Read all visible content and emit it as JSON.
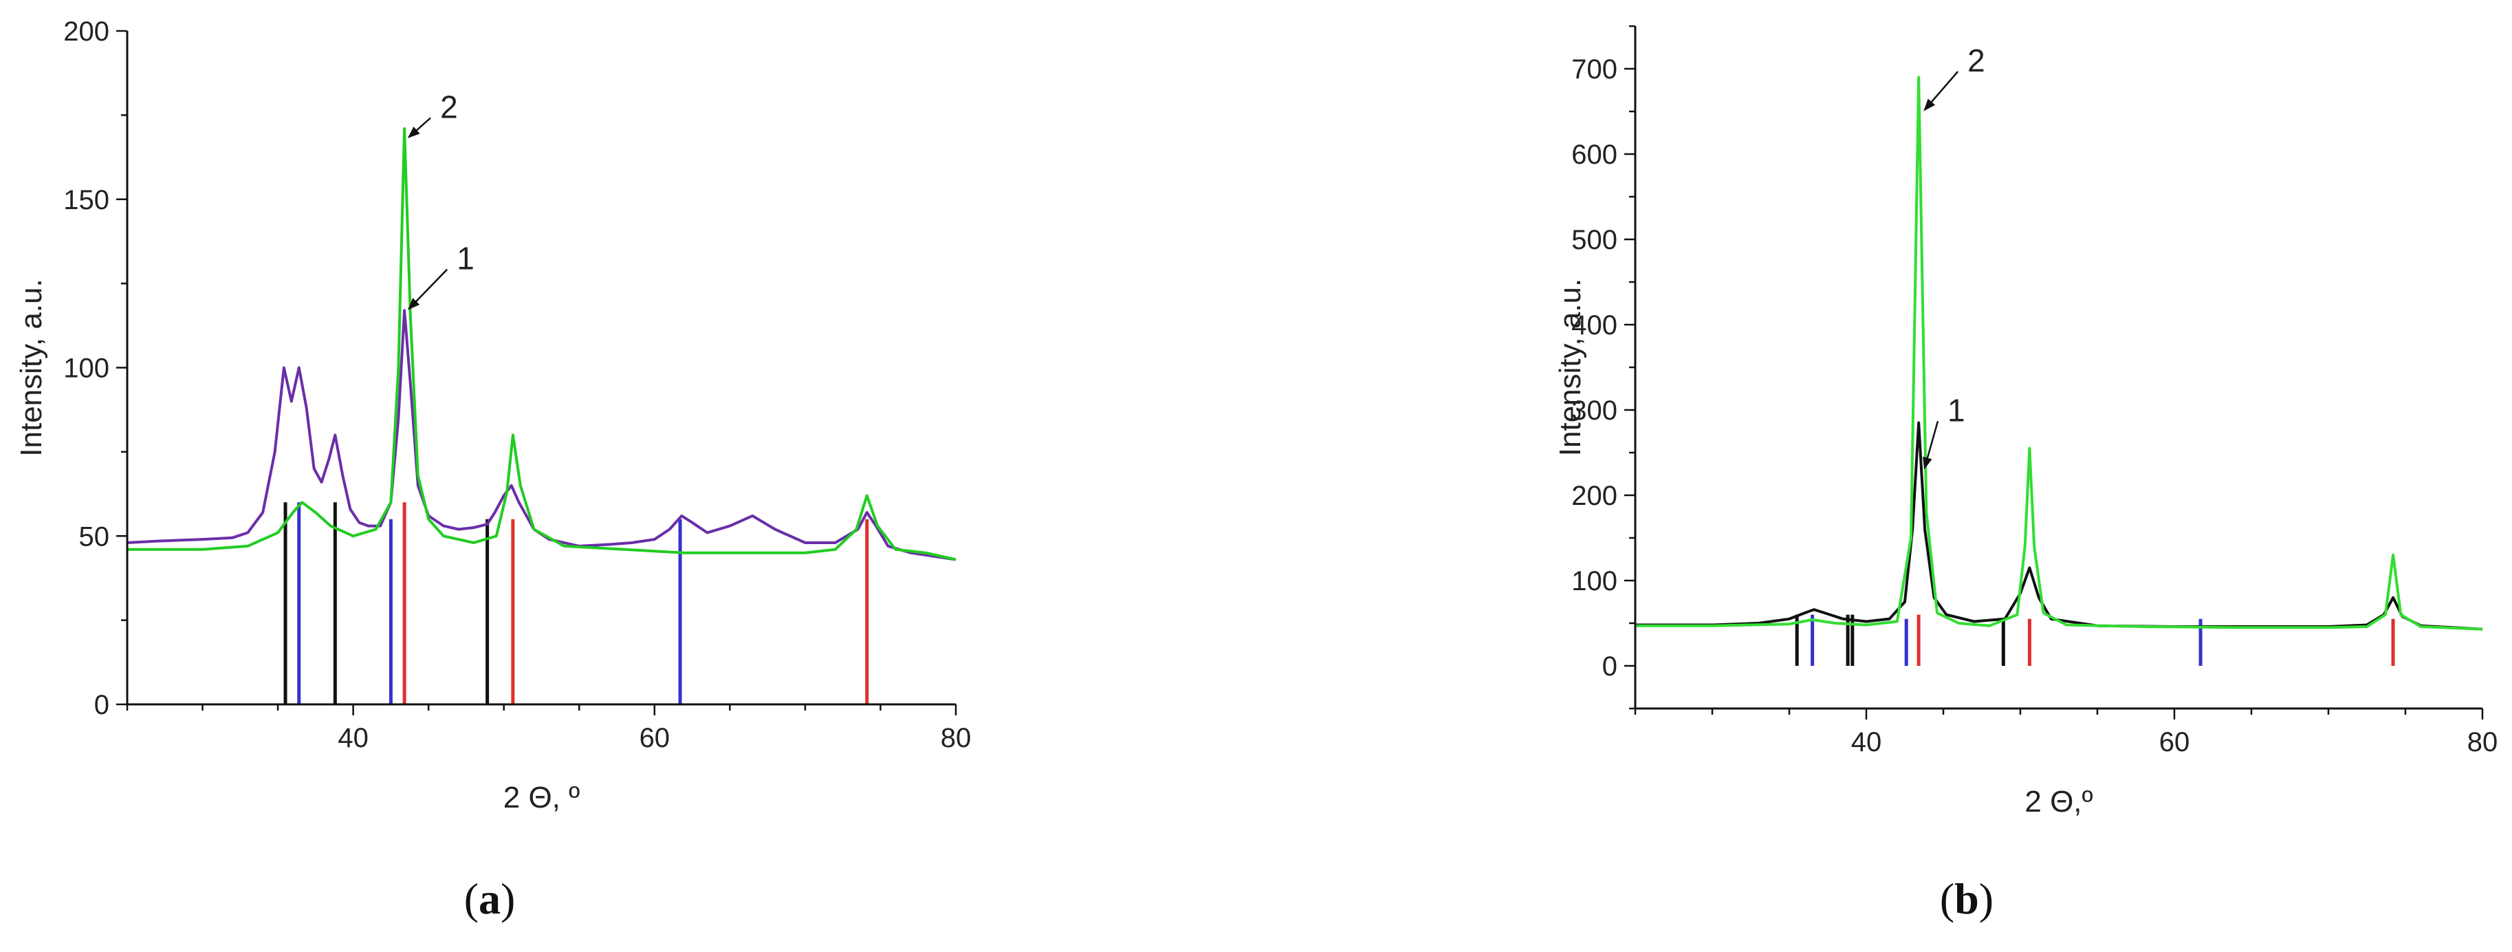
{
  "chart_data": [
    {
      "panel": "a",
      "caption": {
        "open": "(",
        "letter": "a",
        "close": ")"
      },
      "type": "line",
      "xlabel": "2 Θ, º",
      "ylabel": "Intensity, a.u.",
      "xlim": [
        25,
        80
      ],
      "ylim": [
        0,
        200
      ],
      "xticks": [
        40,
        60,
        80
      ],
      "yticks": [
        0,
        50,
        100,
        150,
        200
      ],
      "grid": false,
      "series": [
        {
          "label": "1",
          "color": "#6a2fa8",
          "x": [
            25,
            27,
            30,
            32,
            33,
            34,
            34.8,
            35.4,
            35.9,
            36.4,
            36.9,
            37.4,
            37.9,
            38.4,
            38.8,
            39.3,
            39.8,
            40.4,
            41,
            41.8,
            42.5,
            43.0,
            43.4,
            43.8,
            44.3,
            45,
            46,
            47,
            48,
            48.9,
            49.4,
            50,
            50.5,
            51,
            52,
            53,
            55,
            57,
            58.5,
            60,
            61,
            61.8,
            62.5,
            63.5,
            65,
            66.5,
            68,
            70,
            72,
            73.5,
            74.1,
            74.7,
            75.5,
            77,
            80
          ],
          "y": [
            48,
            48.5,
            49,
            49.5,
            51,
            57,
            75,
            100,
            90,
            100,
            88,
            70,
            66,
            73,
            80,
            68,
            58,
            54,
            53,
            53,
            60,
            85,
            117,
            95,
            65,
            56,
            53,
            52,
            52.5,
            53.5,
            57,
            62,
            65,
            60,
            52,
            49,
            47,
            47.5,
            48,
            49,
            52,
            56,
            54,
            51,
            53,
            56,
            52,
            48,
            48,
            52,
            57,
            53,
            47,
            45,
            43
          ]
        },
        {
          "label": "2",
          "color": "#22cc22",
          "x": [
            25,
            30,
            33,
            35,
            36,
            36.6,
            37.5,
            38.5,
            40,
            41.5,
            42.5,
            43.0,
            43.4,
            43.8,
            44.3,
            45,
            46,
            48,
            49.5,
            50.2,
            50.6,
            51.1,
            52,
            54,
            58,
            62,
            66,
            70,
            72,
            73.4,
            74.1,
            74.8,
            76,
            78,
            80
          ],
          "y": [
            46,
            46,
            47,
            51,
            57,
            60,
            57,
            53,
            50,
            52,
            60,
            100,
            171,
            115,
            68,
            55,
            50,
            48,
            50,
            63,
            80,
            65,
            52,
            47,
            46,
            45,
            45,
            45,
            46,
            52,
            62,
            53,
            46,
            45,
            43
          ]
        }
      ],
      "reference_lines": [
        {
          "x": 35.5,
          "height": 60,
          "color": "#111111"
        },
        {
          "x": 36.4,
          "height": 60,
          "color": "#3333cc"
        },
        {
          "x": 38.8,
          "height": 60,
          "color": "#111111"
        },
        {
          "x": 42.5,
          "height": 55,
          "color": "#3333cc"
        },
        {
          "x": 43.4,
          "height": 60,
          "color": "#e03030"
        },
        {
          "x": 48.9,
          "height": 55,
          "color": "#111111"
        },
        {
          "x": 50.6,
          "height": 55,
          "color": "#e03030"
        },
        {
          "x": 61.7,
          "height": 55,
          "color": "#3333cc"
        },
        {
          "x": 74.1,
          "height": 55,
          "color": "#e03030"
        }
      ],
      "annotations": [
        {
          "text": "1",
          "target": [
            43.5,
            117
          ],
          "label_at": [
            46.6,
            130
          ]
        },
        {
          "text": "2",
          "target": [
            43.5,
            168
          ],
          "label_at": [
            45.5,
            175
          ]
        }
      ]
    },
    {
      "panel": "b",
      "caption": {
        "open": "(",
        "letter": "b",
        "close": ")"
      },
      "type": "line",
      "xlabel": "2 Θ,º",
      "ylabel": "Intensity, a.u.",
      "xlim": [
        25,
        80
      ],
      "ylim": [
        -50,
        750
      ],
      "xticks": [
        40,
        60,
        80
      ],
      "yticks": [
        0,
        100,
        200,
        300,
        400,
        500,
        600,
        700
      ],
      "grid": false,
      "series": [
        {
          "label": "1",
          "color": "#111111",
          "x": [
            25,
            30,
            33,
            35,
            36,
            36.6,
            37.3,
            38.5,
            40,
            41.5,
            42.5,
            43.0,
            43.4,
            43.8,
            44.4,
            45.2,
            47,
            49,
            50.0,
            50.6,
            51.2,
            52,
            55,
            60,
            65,
            70,
            72.5,
            73.6,
            74.2,
            74.8,
            76,
            80
          ],
          "y": [
            48,
            48,
            50,
            55,
            62,
            66,
            62,
            55,
            52,
            55,
            75,
            160,
            285,
            160,
            80,
            60,
            52,
            55,
            85,
            115,
            80,
            55,
            47,
            46,
            46,
            46,
            48,
            60,
            80,
            58,
            47,
            43
          ]
        },
        {
          "label": "2",
          "color": "#33dd33",
          "x": [
            25,
            30,
            35,
            36.5,
            38,
            40,
            42,
            42.9,
            43.4,
            43.9,
            44.6,
            46,
            48,
            49.8,
            50.3,
            50.6,
            50.9,
            51.5,
            53,
            58,
            64,
            70,
            72.5,
            73.7,
            74.2,
            74.7,
            76,
            80
          ],
          "y": [
            47,
            47,
            49,
            54,
            50,
            48,
            52,
            150,
            690,
            180,
            62,
            50,
            47,
            60,
            140,
            255,
            140,
            62,
            48,
            46,
            45,
            45,
            46,
            60,
            130,
            60,
            46,
            43
          ]
        }
      ],
      "reference_lines": [
        {
          "x": 35.5,
          "height": 60,
          "color": "#111111"
        },
        {
          "x": 36.5,
          "height": 60,
          "color": "#3333cc"
        },
        {
          "x": 38.8,
          "height": 60,
          "color": "#111111"
        },
        {
          "x": 39.1,
          "height": 60,
          "color": "#111111"
        },
        {
          "x": 42.6,
          "height": 55,
          "color": "#3333cc"
        },
        {
          "x": 43.4,
          "height": 60,
          "color": "#e03030"
        },
        {
          "x": 48.9,
          "height": 55,
          "color": "#111111"
        },
        {
          "x": 50.6,
          "height": 55,
          "color": "#e03030"
        },
        {
          "x": 61.7,
          "height": 55,
          "color": "#3333cc"
        },
        {
          "x": 74.2,
          "height": 55,
          "color": "#e03030"
        }
      ],
      "annotations": [
        {
          "text": "1",
          "target": [
            43.6,
            230
          ],
          "label_at": [
            45.0,
            290
          ]
        },
        {
          "text": "2",
          "target": [
            43.6,
            650
          ],
          "label_at": [
            46.3,
            700
          ]
        }
      ]
    }
  ]
}
